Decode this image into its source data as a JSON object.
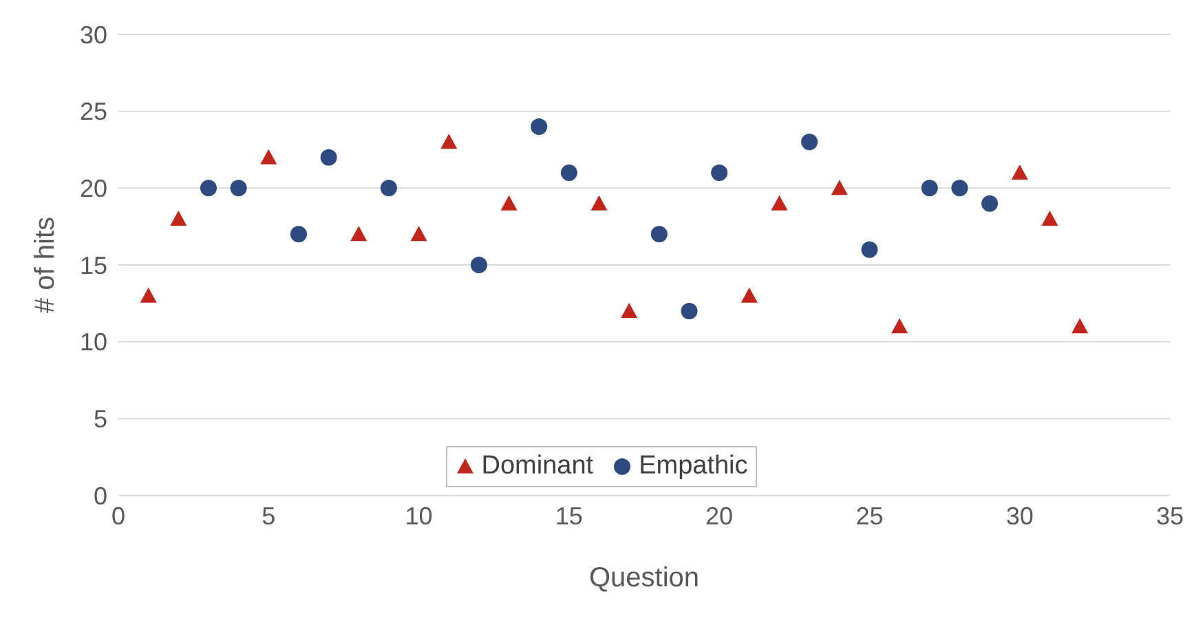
{
  "chart_data": {
    "type": "scatter",
    "xlabel": "Question",
    "ylabel": "# of hits",
    "xlim": [
      0,
      35
    ],
    "xticks": [
      0,
      5,
      10,
      15,
      20,
      25,
      30,
      35
    ],
    "ylim": [
      0,
      30
    ],
    "yticks": [
      0,
      5,
      10,
      15,
      20,
      25,
      30
    ],
    "grid": "y",
    "legend": "bottom",
    "series": [
      {
        "name": "Dominant",
        "color": "#c0261c",
        "marker": "triangle",
        "x": [
          1,
          2,
          5,
          8,
          10,
          11,
          13,
          16,
          17,
          21,
          22,
          24,
          26,
          30,
          31,
          32
        ],
        "values": [
          13,
          18,
          22,
          17,
          17,
          23,
          19,
          19,
          12,
          13,
          19,
          20,
          11,
          21,
          18,
          11
        ]
      },
      {
        "name": "Empathic",
        "color": "#2e4a7f",
        "marker": "circle",
        "x": [
          3,
          4,
          6,
          7,
          9,
          12,
          14,
          15,
          18,
          19,
          20,
          23,
          25,
          27,
          28,
          29
        ],
        "values": [
          20,
          20,
          17,
          22,
          20,
          15,
          24,
          21,
          17,
          12,
          21,
          23,
          16,
          20,
          20,
          19
        ]
      }
    ]
  }
}
